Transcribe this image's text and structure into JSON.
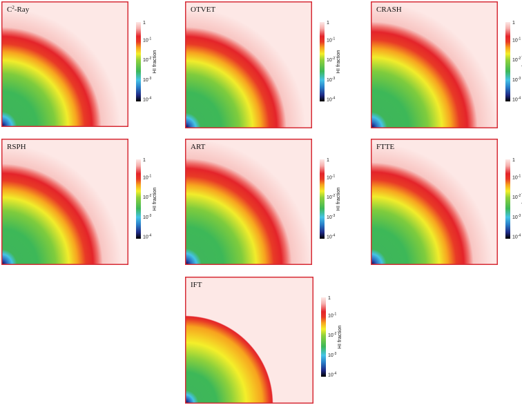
{
  "colors": {
    "frame": "#d62b35",
    "background": "#fde8e6",
    "colormap": [
      "#000000",
      "#2a2f8f",
      "#2a7fc9",
      "#45c3e6",
      "#3db858",
      "#8fd13b",
      "#f4ef2a",
      "#f7a21e",
      "#e83a26",
      "#e4242a",
      "#f8c6c3",
      "#fde8e6"
    ]
  },
  "colorbar": {
    "axis_label": "HI fraction",
    "ticks": [
      {
        "base": "1",
        "exp": ""
      },
      {
        "base": "10",
        "exp": "-1"
      },
      {
        "base": "10",
        "exp": "-2"
      },
      {
        "base": "10",
        "exp": "-3"
      },
      {
        "base": "10",
        "exp": "-4"
      }
    ]
  },
  "panels": [
    {
      "id": "c2ray",
      "title": "C",
      "title_sup": "2",
      "title_tail": "-Ray"
    },
    {
      "id": "otvet",
      "title": "OTVET"
    },
    {
      "id": "crash",
      "title": "CRASH"
    },
    {
      "id": "rsph",
      "title": "RSPH"
    },
    {
      "id": "art",
      "title": "ART"
    },
    {
      "id": "ftte",
      "title": "FTTE"
    },
    {
      "id": "ift",
      "title": "IFT"
    }
  ]
}
